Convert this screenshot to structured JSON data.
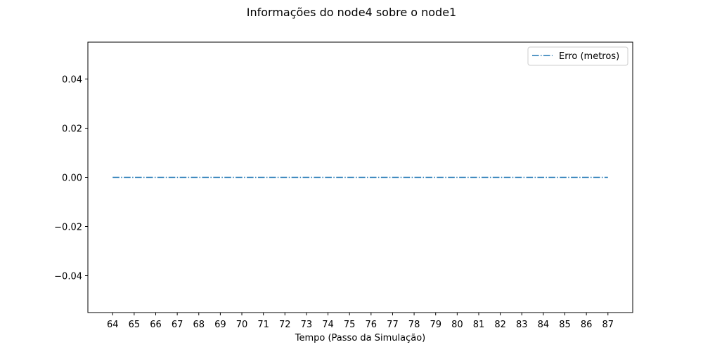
{
  "chart_data": {
    "type": "line",
    "title": "Informações do node4 sobre o node1",
    "xlabel": "Tempo (Passo da Simulação)",
    "ylabel": "",
    "x": [
      64,
      65,
      66,
      67,
      68,
      69,
      70,
      71,
      72,
      73,
      74,
      75,
      76,
      77,
      78,
      79,
      80,
      81,
      82,
      83,
      84,
      85,
      86,
      87
    ],
    "xticks": [
      "64",
      "65",
      "66",
      "67",
      "68",
      "69",
      "70",
      "71",
      "72",
      "73",
      "74",
      "75",
      "76",
      "77",
      "78",
      "79",
      "80",
      "81",
      "82",
      "83",
      "84",
      "85",
      "86",
      "87"
    ],
    "xlim": [
      62.85,
      88.15
    ],
    "ylim": [
      -0.055,
      0.055
    ],
    "yticks": [
      0.04,
      0.02,
      0.0,
      -0.02,
      -0.04
    ],
    "ytick_labels": [
      "0.04",
      "0.02",
      "0.00",
      "−0.02",
      "−0.04"
    ],
    "series": [
      {
        "name": "Erro (metros)",
        "line_style": "dash-dot",
        "color": "#1f77b4",
        "values": [
          0,
          0,
          0,
          0,
          0,
          0,
          0,
          0,
          0,
          0,
          0,
          0,
          0,
          0,
          0,
          0,
          0,
          0,
          0,
          0,
          0,
          0,
          0,
          0
        ]
      }
    ],
    "legend": "top-right",
    "grid": false
  }
}
